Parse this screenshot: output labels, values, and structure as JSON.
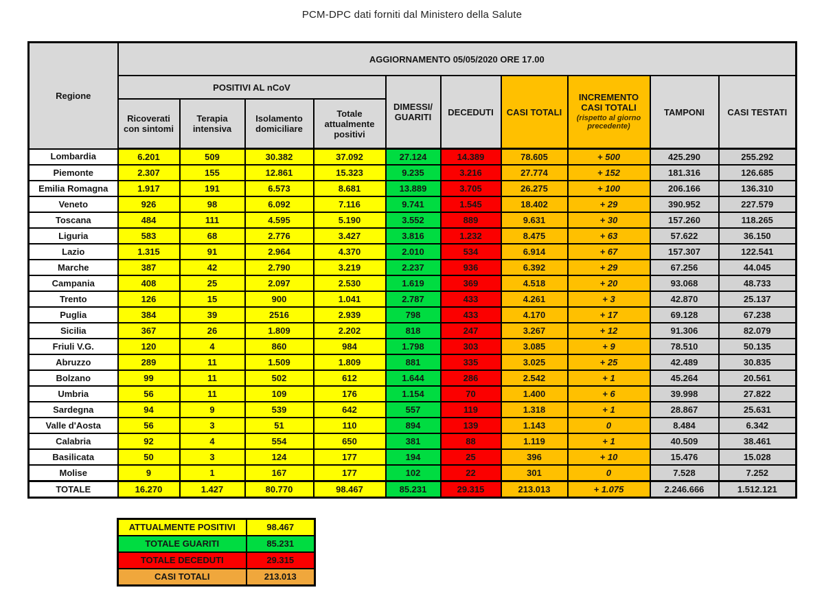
{
  "page_title": "PCM-DPC dati forniti dal Ministero della Salute",
  "table": {
    "update_banner": "AGGIORNAMENTO 05/05/2020 ORE 17.00",
    "headers": {
      "regione": "Regione",
      "positivi_group": "POSITIVI AL nCoV",
      "ricoverati": "Ricoverati con sintomi",
      "terapia": "Terapia intensiva",
      "isolamento": "Isolamento domiciliare",
      "totale_positivi": "Totale attualmente positivi",
      "dimessi": "DIMESSI/ GUARITI",
      "deceduti": "DECEDUTI",
      "casi_totali": "CASI TOTALI",
      "incremento": "INCREMENTO CASI TOTALI",
      "incremento_note": "(rispetto al giorno precedente)",
      "tamponi": "TAMPONI",
      "casi_testati": "CASI TESTATI"
    },
    "rows": [
      {
        "regione": "Lombardia",
        "ricoverati": "6.201",
        "terapia": "509",
        "isolamento": "30.382",
        "totale_positivi": "37.092",
        "dimessi": "27.124",
        "deceduti": "14.389",
        "casi_totali": "78.605",
        "incremento": "+ 500",
        "tamponi": "425.290",
        "casi_testati": "255.292"
      },
      {
        "regione": "Piemonte",
        "ricoverati": "2.307",
        "terapia": "155",
        "isolamento": "12.861",
        "totale_positivi": "15.323",
        "dimessi": "9.235",
        "deceduti": "3.216",
        "casi_totali": "27.774",
        "incremento": "+ 152",
        "tamponi": "181.316",
        "casi_testati": "126.685"
      },
      {
        "regione": "Emilia Romagna",
        "ricoverati": "1.917",
        "terapia": "191",
        "isolamento": "6.573",
        "totale_positivi": "8.681",
        "dimessi": "13.889",
        "deceduti": "3.705",
        "casi_totali": "26.275",
        "incremento": "+ 100",
        "tamponi": "206.166",
        "casi_testati": "136.310"
      },
      {
        "regione": "Veneto",
        "ricoverati": "926",
        "terapia": "98",
        "isolamento": "6.092",
        "totale_positivi": "7.116",
        "dimessi": "9.741",
        "deceduti": "1.545",
        "casi_totali": "18.402",
        "incremento": "+ 29",
        "tamponi": "390.952",
        "casi_testati": "227.579"
      },
      {
        "regione": "Toscana",
        "ricoverati": "484",
        "terapia": "111",
        "isolamento": "4.595",
        "totale_positivi": "5.190",
        "dimessi": "3.552",
        "deceduti": "889",
        "casi_totali": "9.631",
        "incremento": "+ 30",
        "tamponi": "157.260",
        "casi_testati": "118.265"
      },
      {
        "regione": "Liguria",
        "ricoverati": "583",
        "terapia": "68",
        "isolamento": "2.776",
        "totale_positivi": "3.427",
        "dimessi": "3.816",
        "deceduti": "1.232",
        "casi_totali": "8.475",
        "incremento": "+ 63",
        "tamponi": "57.622",
        "casi_testati": "36.150"
      },
      {
        "regione": "Lazio",
        "ricoverati": "1.315",
        "terapia": "91",
        "isolamento": "2.964",
        "totale_positivi": "4.370",
        "dimessi": "2.010",
        "deceduti": "534",
        "casi_totali": "6.914",
        "incremento": "+ 67",
        "tamponi": "157.307",
        "casi_testati": "122.541"
      },
      {
        "regione": "Marche",
        "ricoverati": "387",
        "terapia": "42",
        "isolamento": "2.790",
        "totale_positivi": "3.219",
        "dimessi": "2.237",
        "deceduti": "936",
        "casi_totali": "6.392",
        "incremento": "+ 29",
        "tamponi": "67.256",
        "casi_testati": "44.045"
      },
      {
        "regione": "Campania",
        "ricoverati": "408",
        "terapia": "25",
        "isolamento": "2.097",
        "totale_positivi": "2.530",
        "dimessi": "1.619",
        "deceduti": "369",
        "casi_totali": "4.518",
        "incremento": "+ 20",
        "tamponi": "93.068",
        "casi_testati": "48.733"
      },
      {
        "regione": "Trento",
        "ricoverati": "126",
        "terapia": "15",
        "isolamento": "900",
        "totale_positivi": "1.041",
        "dimessi": "2.787",
        "deceduti": "433",
        "casi_totali": "4.261",
        "incremento": "+ 3",
        "tamponi": "42.870",
        "casi_testati": "25.137"
      },
      {
        "regione": "Puglia",
        "ricoverati": "384",
        "terapia": "39",
        "isolamento": "2516",
        "totale_positivi": "2.939",
        "dimessi": "798",
        "deceduti": "433",
        "casi_totali": "4.170",
        "incremento": "+ 17",
        "tamponi": "69.128",
        "casi_testati": "67.238"
      },
      {
        "regione": "Sicilia",
        "ricoverati": "367",
        "terapia": "26",
        "isolamento": "1.809",
        "totale_positivi": "2.202",
        "dimessi": "818",
        "deceduti": "247",
        "casi_totali": "3.267",
        "incremento": "+ 12",
        "tamponi": "91.306",
        "casi_testati": "82.079"
      },
      {
        "regione": "Friuli V.G.",
        "ricoverati": "120",
        "terapia": "4",
        "isolamento": "860",
        "totale_positivi": "984",
        "dimessi": "1.798",
        "deceduti": "303",
        "casi_totali": "3.085",
        "incremento": "+ 9",
        "tamponi": "78.510",
        "casi_testati": "50.135"
      },
      {
        "regione": "Abruzzo",
        "ricoverati": "289",
        "terapia": "11",
        "isolamento": "1.509",
        "totale_positivi": "1.809",
        "dimessi": "881",
        "deceduti": "335",
        "casi_totali": "3.025",
        "incremento": "+ 25",
        "tamponi": "42.489",
        "casi_testati": "30.835"
      },
      {
        "regione": "Bolzano",
        "ricoverati": "99",
        "terapia": "11",
        "isolamento": "502",
        "totale_positivi": "612",
        "dimessi": "1.644",
        "deceduti": "286",
        "casi_totali": "2.542",
        "incremento": "+ 1",
        "tamponi": "45.264",
        "casi_testati": "20.561"
      },
      {
        "regione": "Umbria",
        "ricoverati": "56",
        "terapia": "11",
        "isolamento": "109",
        "totale_positivi": "176",
        "dimessi": "1.154",
        "deceduti": "70",
        "casi_totali": "1.400",
        "incremento": "+ 6",
        "tamponi": "39.998",
        "casi_testati": "27.822"
      },
      {
        "regione": "Sardegna",
        "ricoverati": "94",
        "terapia": "9",
        "isolamento": "539",
        "totale_positivi": "642",
        "dimessi": "557",
        "deceduti": "119",
        "casi_totali": "1.318",
        "incremento": "+ 1",
        "tamponi": "28.867",
        "casi_testati": "25.631"
      },
      {
        "regione": "Valle d'Aosta",
        "ricoverati": "56",
        "terapia": "3",
        "isolamento": "51",
        "totale_positivi": "110",
        "dimessi": "894",
        "deceduti": "139",
        "casi_totali": "1.143",
        "incremento": "0",
        "tamponi": "8.484",
        "casi_testati": "6.342"
      },
      {
        "regione": "Calabria",
        "ricoverati": "92",
        "terapia": "4",
        "isolamento": "554",
        "totale_positivi": "650",
        "dimessi": "381",
        "deceduti": "88",
        "casi_totali": "1.119",
        "incremento": "+ 1",
        "tamponi": "40.509",
        "casi_testati": "38.461"
      },
      {
        "regione": "Basilicata",
        "ricoverati": "50",
        "terapia": "3",
        "isolamento": "124",
        "totale_positivi": "177",
        "dimessi": "194",
        "deceduti": "25",
        "casi_totali": "396",
        "incremento": "+ 10",
        "tamponi": "15.476",
        "casi_testati": "15.028"
      },
      {
        "regione": "Molise",
        "ricoverati": "9",
        "terapia": "1",
        "isolamento": "167",
        "totale_positivi": "177",
        "dimessi": "102",
        "deceduti": "22",
        "casi_totali": "301",
        "incremento": "0",
        "tamponi": "7.528",
        "casi_testati": "7.252"
      }
    ],
    "total_row": {
      "regione": "TOTALE",
      "ricoverati": "16.270",
      "terapia": "1.427",
      "isolamento": "80.770",
      "totale_positivi": "98.467",
      "dimessi": "85.231",
      "deceduti": "29.315",
      "casi_totali": "213.013",
      "incremento": "+ 1.075",
      "tamponi": "2.246.666",
      "casi_testati": "1.512.121"
    }
  },
  "summary": {
    "rows": [
      {
        "label": "ATTUALMENTE POSITIVI",
        "value": "98.467",
        "color": "yellow"
      },
      {
        "label": "TOTALE GUARITI",
        "value": "85.231",
        "color": "green"
      },
      {
        "label": "TOTALE DECEDUTI",
        "value": "29.315",
        "color": "red"
      },
      {
        "label": "CASI TOTALI",
        "value": "213.013",
        "color": "orange"
      }
    ]
  },
  "colors": {
    "yellow": "#ffff00",
    "green": "#00dc41",
    "red": "#fb0000",
    "orange": "#ffc000",
    "summary_orange": "#f0a73c",
    "header_grey": "#d9d9d9",
    "cell_grey": "#d3d3d3"
  }
}
